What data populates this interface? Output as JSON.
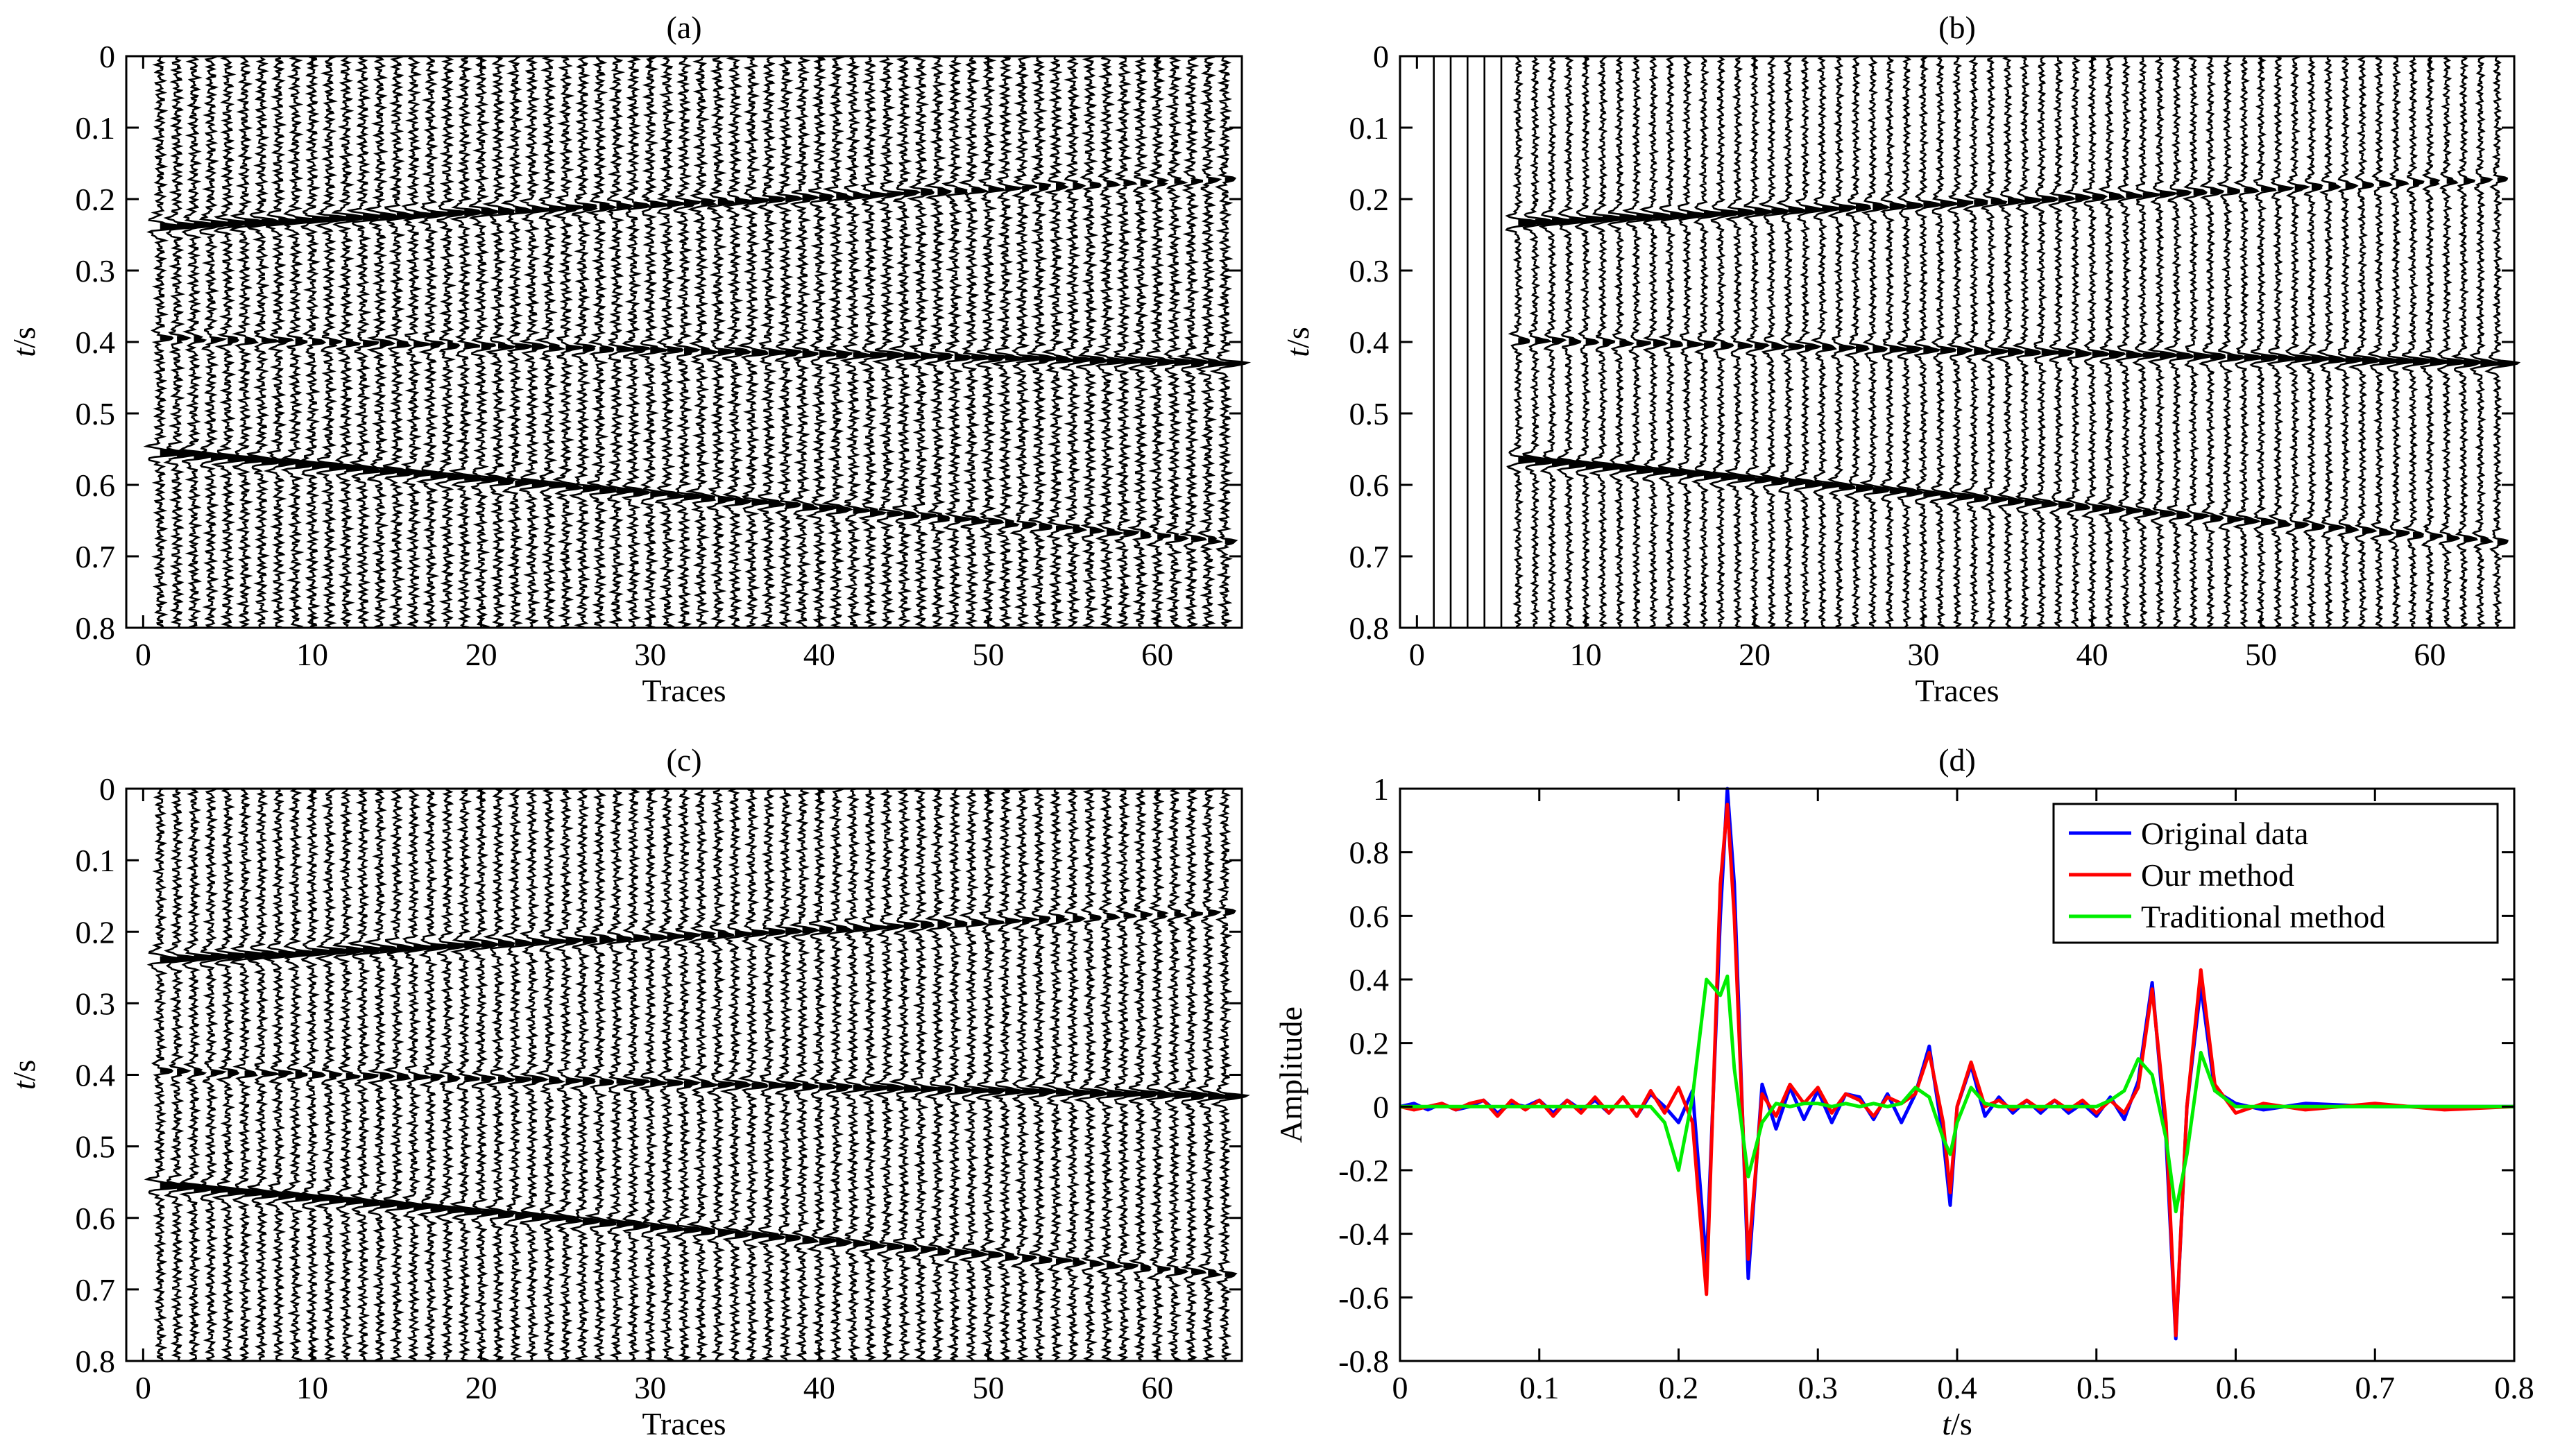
{
  "chart_data": [
    {
      "type": "wiggle",
      "title": "(a)",
      "xlabel": "Traces",
      "ylabel_italic": "t",
      "ylabel_rest": "/s",
      "xlim": [
        -1,
        65
      ],
      "ylim": [
        0,
        0.8
      ],
      "yreversed": true,
      "xticks": [
        0,
        10,
        20,
        30,
        40,
        50,
        60
      ],
      "xtick_labels": [
        "0",
        "10",
        "20",
        "30",
        "40",
        "50",
        "60"
      ],
      "yticks": [
        0,
        0.1,
        0.2,
        0.3,
        0.4,
        0.5,
        0.6,
        0.7,
        0.8
      ],
      "ytick_labels": [
        "0",
        "0.1",
        "0.2",
        "0.3",
        "0.4",
        "0.5",
        "0.6",
        "0.7",
        "0.8"
      ],
      "first_trace": 1,
      "traces": 64,
      "events": [
        {
          "t0": 0.238,
          "t1": 0.172,
          "amp0": 1.0,
          "amp1": 0.45,
          "noise": 0.08
        },
        {
          "t0": 0.395,
          "t1": 0.43,
          "amp0": 0.5,
          "amp1": 0.9,
          "noise": 0.08
        },
        {
          "t0": 0.555,
          "t1": 0.68,
          "amp0": 1.0,
          "amp1": 0.5,
          "noise": 0.08
        }
      ]
    },
    {
      "type": "wiggle",
      "title": "(b)",
      "xlabel": "Traces",
      "ylabel_italic": "t",
      "ylabel_rest": "/s",
      "xlim": [
        -1,
        65
      ],
      "ylim": [
        0,
        0.8
      ],
      "yreversed": true,
      "xticks": [
        0,
        10,
        20,
        30,
        40,
        50,
        60
      ],
      "xtick_labels": [
        "0",
        "10",
        "20",
        "30",
        "40",
        "50",
        "60"
      ],
      "yticks": [
        0,
        0.1,
        0.2,
        0.3,
        0.4,
        0.5,
        0.6,
        0.7,
        0.8
      ],
      "ytick_labels": [
        "0",
        "0.1",
        "0.2",
        "0.3",
        "0.4",
        "0.5",
        "0.6",
        "0.7",
        "0.8"
      ],
      "first_trace": 1,
      "traces": 64,
      "blank_traces": 5,
      "events": [
        {
          "t0": 0.238,
          "t1": 0.172,
          "amp0": 1.0,
          "amp1": 0.45,
          "noise": 0.05
        },
        {
          "t0": 0.395,
          "t1": 0.43,
          "amp0": 0.5,
          "amp1": 0.9,
          "noise": 0.05
        },
        {
          "t0": 0.555,
          "t1": 0.68,
          "amp0": 1.0,
          "amp1": 0.5,
          "noise": 0.05
        }
      ]
    },
    {
      "type": "wiggle",
      "title": "(c)",
      "xlabel": "Traces",
      "ylabel_italic": "t",
      "ylabel_rest": "/s",
      "xlim": [
        -1,
        65
      ],
      "ylim": [
        0,
        0.8
      ],
      "yreversed": true,
      "xticks": [
        0,
        10,
        20,
        30,
        40,
        50,
        60
      ],
      "xtick_labels": [
        "0",
        "10",
        "20",
        "30",
        "40",
        "50",
        "60"
      ],
      "yticks": [
        0,
        0.1,
        0.2,
        0.3,
        0.4,
        0.5,
        0.6,
        0.7,
        0.8
      ],
      "ytick_labels": [
        "0",
        "0.1",
        "0.2",
        "0.3",
        "0.4",
        "0.5",
        "0.6",
        "0.7",
        "0.8"
      ],
      "first_trace": 1,
      "traces": 64,
      "events": [
        {
          "t0": 0.238,
          "t1": 0.172,
          "amp0": 1.0,
          "amp1": 0.45,
          "noise": 0.07
        },
        {
          "t0": 0.395,
          "t1": 0.43,
          "amp0": 0.5,
          "amp1": 0.9,
          "noise": 0.07
        },
        {
          "t0": 0.555,
          "t1": 0.68,
          "amp0": 1.0,
          "amp1": 0.5,
          "noise": 0.07
        }
      ]
    },
    {
      "type": "line",
      "title": "(d)",
      "xlabel_italic": "t",
      "xlabel_rest": "/s",
      "ylabel": "Amplitude",
      "xlim": [
        0,
        0.8
      ],
      "ylim": [
        -0.8,
        1
      ],
      "xticks": [
        0,
        0.1,
        0.2,
        0.3,
        0.4,
        0.5,
        0.6,
        0.7,
        0.8
      ],
      "xtick_labels": [
        "0",
        "0.1",
        "0.2",
        "0.3",
        "0.4",
        "0.5",
        "0.6",
        "0.7",
        "0.8"
      ],
      "yticks": [
        -0.8,
        -0.6,
        -0.4,
        -0.2,
        0,
        0.2,
        0.4,
        0.6,
        0.8,
        1
      ],
      "ytick_labels": [
        "-0.8",
        "-0.6",
        "-0.4",
        "-0.2",
        "0",
        "0.2",
        "0.4",
        "0.6",
        "0.8",
        "1"
      ],
      "legend_position": "top-right",
      "x": [
        0,
        0.01,
        0.02,
        0.03,
        0.04,
        0.05,
        0.06,
        0.07,
        0.08,
        0.09,
        0.1,
        0.11,
        0.12,
        0.13,
        0.14,
        0.15,
        0.16,
        0.17,
        0.18,
        0.19,
        0.2,
        0.21,
        0.22,
        0.23,
        0.235,
        0.24,
        0.25,
        0.26,
        0.27,
        0.28,
        0.29,
        0.3,
        0.31,
        0.32,
        0.33,
        0.34,
        0.35,
        0.36,
        0.37,
        0.38,
        0.39,
        0.395,
        0.4,
        0.41,
        0.42,
        0.43,
        0.44,
        0.45,
        0.46,
        0.47,
        0.48,
        0.49,
        0.5,
        0.51,
        0.52,
        0.53,
        0.54,
        0.55,
        0.557,
        0.565,
        0.575,
        0.585,
        0.6,
        0.62,
        0.65,
        0.7,
        0.75,
        0.8
      ],
      "series": [
        {
          "name": "Original data",
          "color": "#0000ff",
          "values": [
            0,
            0.01,
            -0.01,
            0.01,
            -0.01,
            0,
            0.02,
            -0.02,
            0.01,
            0,
            0.02,
            -0.02,
            0.02,
            -0.01,
            0.02,
            -0.02,
            0.03,
            -0.03,
            0.04,
            0,
            -0.05,
            0.05,
            -0.5,
            0.6,
            1.0,
            0.7,
            -0.54,
            0.07,
            -0.07,
            0.06,
            -0.04,
            0.05,
            -0.05,
            0.04,
            0.03,
            -0.04,
            0.04,
            -0.05,
            0.04,
            0.19,
            -0.1,
            -0.31,
            0.0,
            0.13,
            -0.03,
            0.03,
            -0.02,
            0.02,
            -0.02,
            0.02,
            -0.02,
            0.01,
            -0.03,
            0.03,
            -0.04,
            0.08,
            0.39,
            -0.1,
            -0.73,
            0.0,
            0.38,
            0.05,
            0.01,
            -0.01,
            0.01,
            0,
            0,
            0
          ]
        },
        {
          "name": "Our method",
          "color": "#ff0000",
          "values": [
            0,
            -0.01,
            0,
            0.01,
            -0.01,
            0.01,
            0.02,
            -0.03,
            0.02,
            -0.01,
            0.02,
            -0.03,
            0.02,
            -0.02,
            0.03,
            -0.02,
            0.03,
            -0.03,
            0.05,
            -0.02,
            0.06,
            -0.05,
            -0.59,
            0.7,
            0.95,
            0.6,
            -0.48,
            0.04,
            -0.03,
            0.07,
            0.01,
            0.06,
            -0.02,
            0.04,
            0.02,
            -0.03,
            0.03,
            0.01,
            0.04,
            0.17,
            -0.05,
            -0.27,
            0.0,
            0.14,
            0.0,
            0.02,
            -0.01,
            0.02,
            -0.01,
            0.02,
            -0.01,
            0.02,
            -0.02,
            0.02,
            -0.02,
            0.06,
            0.37,
            -0.05,
            -0.72,
            0.0,
            0.43,
            0.07,
            -0.02,
            0.01,
            -0.01,
            0.01,
            -0.01,
            0
          ]
        },
        {
          "name": "Traditional method",
          "color": "#00ee00",
          "values": [
            0,
            0,
            0,
            0,
            0,
            0,
            0,
            0,
            0,
            0,
            0,
            0,
            0,
            0,
            0,
            0,
            0,
            0,
            0,
            -0.05,
            -0.2,
            0.03,
            0.4,
            0.35,
            0.41,
            0.12,
            -0.22,
            -0.05,
            0.01,
            0.0,
            0.01,
            0.01,
            0.0,
            0.01,
            0.0,
            0.01,
            0.0,
            0.01,
            0.06,
            0.03,
            -0.1,
            -0.15,
            -0.05,
            0.06,
            0.01,
            0,
            0,
            0,
            0,
            0,
            0,
            0,
            0,
            0.02,
            0.05,
            0.15,
            0.1,
            -0.1,
            -0.33,
            -0.15,
            0.17,
            0.05,
            0,
            0,
            0,
            0,
            0,
            0
          ]
        }
      ]
    }
  ]
}
